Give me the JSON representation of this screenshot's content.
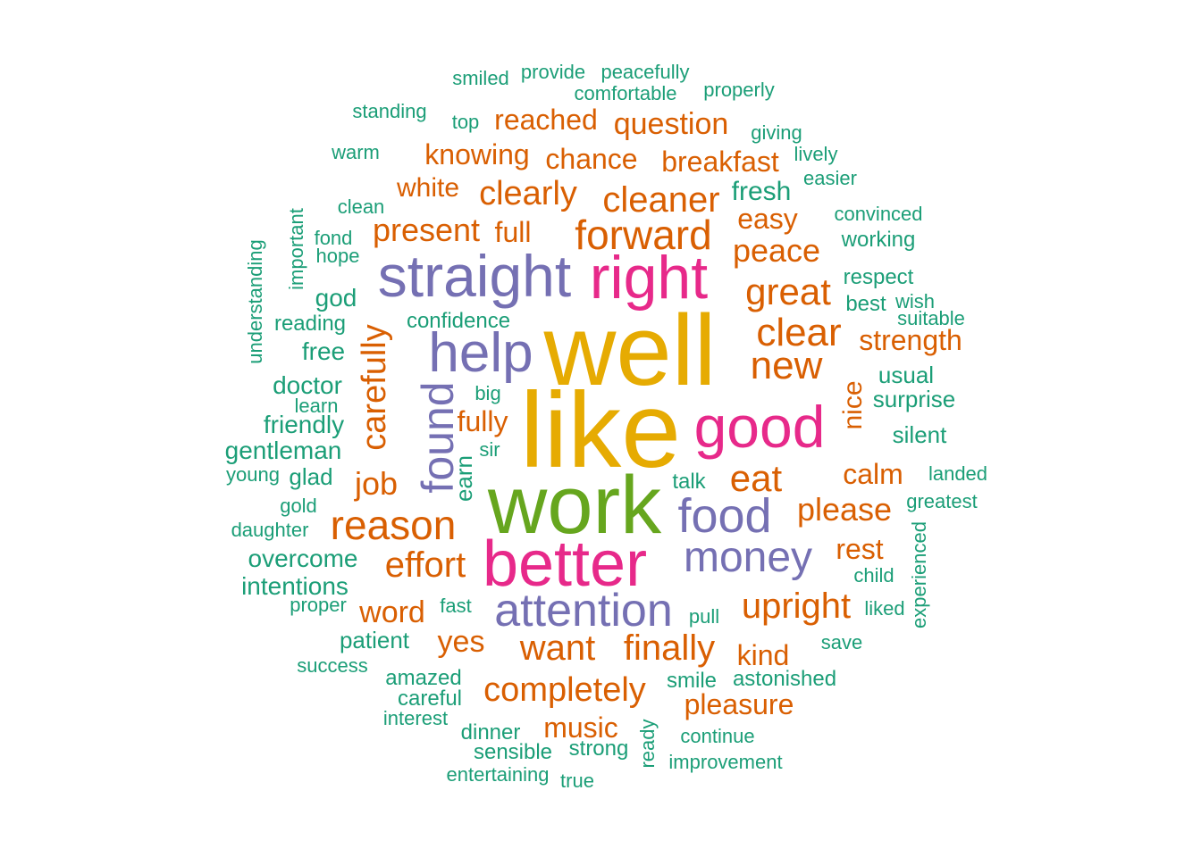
{
  "colors": {
    "background": "#ffffff",
    "green": "#1b9e77",
    "orange": "#d95f02",
    "purple": "#7570b3",
    "pink": "#e7298a",
    "olive": "#66a61e",
    "gold": "#e6ab02"
  },
  "words": [
    {
      "text": "like",
      "color": "gold"
    },
    {
      "text": "well",
      "color": "gold"
    },
    {
      "text": "work",
      "color": "olive"
    },
    {
      "text": "better",
      "color": "pink"
    },
    {
      "text": "good",
      "color": "pink"
    },
    {
      "text": "right",
      "color": "pink"
    },
    {
      "text": "straight",
      "color": "purple"
    },
    {
      "text": "help",
      "color": "purple"
    },
    {
      "text": "found",
      "color": "purple",
      "vertical": true
    },
    {
      "text": "food",
      "color": "purple"
    },
    {
      "text": "attention",
      "color": "purple"
    },
    {
      "text": "money",
      "color": "purple"
    },
    {
      "text": "forward",
      "color": "orange"
    },
    {
      "text": "reason",
      "color": "orange"
    },
    {
      "text": "clear",
      "color": "orange"
    },
    {
      "text": "great",
      "color": "orange"
    },
    {
      "text": "new",
      "color": "orange"
    },
    {
      "text": "eat",
      "color": "orange"
    },
    {
      "text": "cleaner",
      "color": "orange"
    },
    {
      "text": "clearly",
      "color": "orange"
    },
    {
      "text": "effort",
      "color": "orange"
    },
    {
      "text": "want",
      "color": "orange"
    },
    {
      "text": "finally",
      "color": "orange"
    },
    {
      "text": "completely",
      "color": "orange"
    },
    {
      "text": "upright",
      "color": "orange"
    },
    {
      "text": "carefully",
      "color": "orange",
      "vertical": true
    },
    {
      "text": "present",
      "color": "orange"
    },
    {
      "text": "please",
      "color": "orange"
    },
    {
      "text": "peace",
      "color": "orange"
    },
    {
      "text": "strength",
      "color": "orange"
    },
    {
      "text": "question",
      "color": "orange"
    },
    {
      "text": "breakfast",
      "color": "orange"
    },
    {
      "text": "reached",
      "color": "orange"
    },
    {
      "text": "chance",
      "color": "orange"
    },
    {
      "text": "knowing",
      "color": "orange"
    },
    {
      "text": "white",
      "color": "orange"
    },
    {
      "text": "full",
      "color": "orange"
    },
    {
      "text": "easy",
      "color": "orange"
    },
    {
      "text": "nice",
      "color": "orange",
      "vertical": true
    },
    {
      "text": "calm",
      "color": "orange"
    },
    {
      "text": "job",
      "color": "orange"
    },
    {
      "text": "fully",
      "color": "orange"
    },
    {
      "text": "word",
      "color": "orange"
    },
    {
      "text": "yes",
      "color": "orange"
    },
    {
      "text": "kind",
      "color": "orange"
    },
    {
      "text": "music",
      "color": "orange"
    },
    {
      "text": "pleasure",
      "color": "orange"
    },
    {
      "text": "rest",
      "color": "orange"
    },
    {
      "text": "earn",
      "color": "green",
      "vertical": true
    },
    {
      "text": "fresh",
      "color": "green"
    },
    {
      "text": "surprise",
      "color": "green"
    },
    {
      "text": "usual",
      "color": "green"
    },
    {
      "text": "silent",
      "color": "green"
    },
    {
      "text": "doctor",
      "color": "green"
    },
    {
      "text": "friendly",
      "color": "green"
    },
    {
      "text": "gentleman",
      "color": "green"
    },
    {
      "text": "overcome",
      "color": "green"
    },
    {
      "text": "intentions",
      "color": "green"
    },
    {
      "text": "patient",
      "color": "green"
    },
    {
      "text": "god",
      "color": "green"
    },
    {
      "text": "free",
      "color": "green"
    },
    {
      "text": "glad",
      "color": "green"
    },
    {
      "text": "confidence",
      "color": "green"
    },
    {
      "text": "astonished",
      "color": "green"
    },
    {
      "text": "careful",
      "color": "green"
    },
    {
      "text": "amazed",
      "color": "green"
    },
    {
      "text": "dinner",
      "color": "green"
    },
    {
      "text": "sensible",
      "color": "green"
    },
    {
      "text": "strong",
      "color": "green"
    },
    {
      "text": "smile",
      "color": "green"
    },
    {
      "text": "talk",
      "color": "green"
    },
    {
      "text": "reading",
      "color": "green"
    },
    {
      "text": "working",
      "color": "green"
    },
    {
      "text": "respect",
      "color": "green"
    },
    {
      "text": "best",
      "color": "green"
    },
    {
      "text": "wish",
      "color": "green"
    },
    {
      "text": "suitable",
      "color": "green"
    },
    {
      "text": "convinced",
      "color": "green"
    },
    {
      "text": "easier",
      "color": "green"
    },
    {
      "text": "lively",
      "color": "green"
    },
    {
      "text": "giving",
      "color": "green"
    },
    {
      "text": "properly",
      "color": "green"
    },
    {
      "text": "peacefully",
      "color": "green"
    },
    {
      "text": "provide",
      "color": "green"
    },
    {
      "text": "smiled",
      "color": "green"
    },
    {
      "text": "comfortable",
      "color": "green"
    },
    {
      "text": "standing",
      "color": "green"
    },
    {
      "text": "top",
      "color": "green"
    },
    {
      "text": "warm",
      "color": "green"
    },
    {
      "text": "clean",
      "color": "green"
    },
    {
      "text": "fond",
      "color": "green"
    },
    {
      "text": "hope",
      "color": "green"
    },
    {
      "text": "important",
      "color": "green",
      "vertical": true
    },
    {
      "text": "understanding",
      "color": "green",
      "vertical": true
    },
    {
      "text": "learn",
      "color": "green"
    },
    {
      "text": "big",
      "color": "green"
    },
    {
      "text": "sir",
      "color": "green"
    },
    {
      "text": "young",
      "color": "green"
    },
    {
      "text": "gold",
      "color": "green"
    },
    {
      "text": "daughter",
      "color": "green"
    },
    {
      "text": "proper",
      "color": "green"
    },
    {
      "text": "fast",
      "color": "green"
    },
    {
      "text": "pull",
      "color": "green"
    },
    {
      "text": "success",
      "color": "green"
    },
    {
      "text": "interest",
      "color": "green"
    },
    {
      "text": "entertaining",
      "color": "green"
    },
    {
      "text": "true",
      "color": "green"
    },
    {
      "text": "ready",
      "color": "green",
      "vertical": true
    },
    {
      "text": "continue",
      "color": "green"
    },
    {
      "text": "improvement",
      "color": "green"
    },
    {
      "text": "save",
      "color": "green"
    },
    {
      "text": "liked",
      "color": "green"
    },
    {
      "text": "child",
      "color": "green"
    },
    {
      "text": "experienced",
      "color": "green",
      "vertical": true
    },
    {
      "text": "greatest",
      "color": "green"
    },
    {
      "text": "landed",
      "color": "green"
    }
  ]
}
